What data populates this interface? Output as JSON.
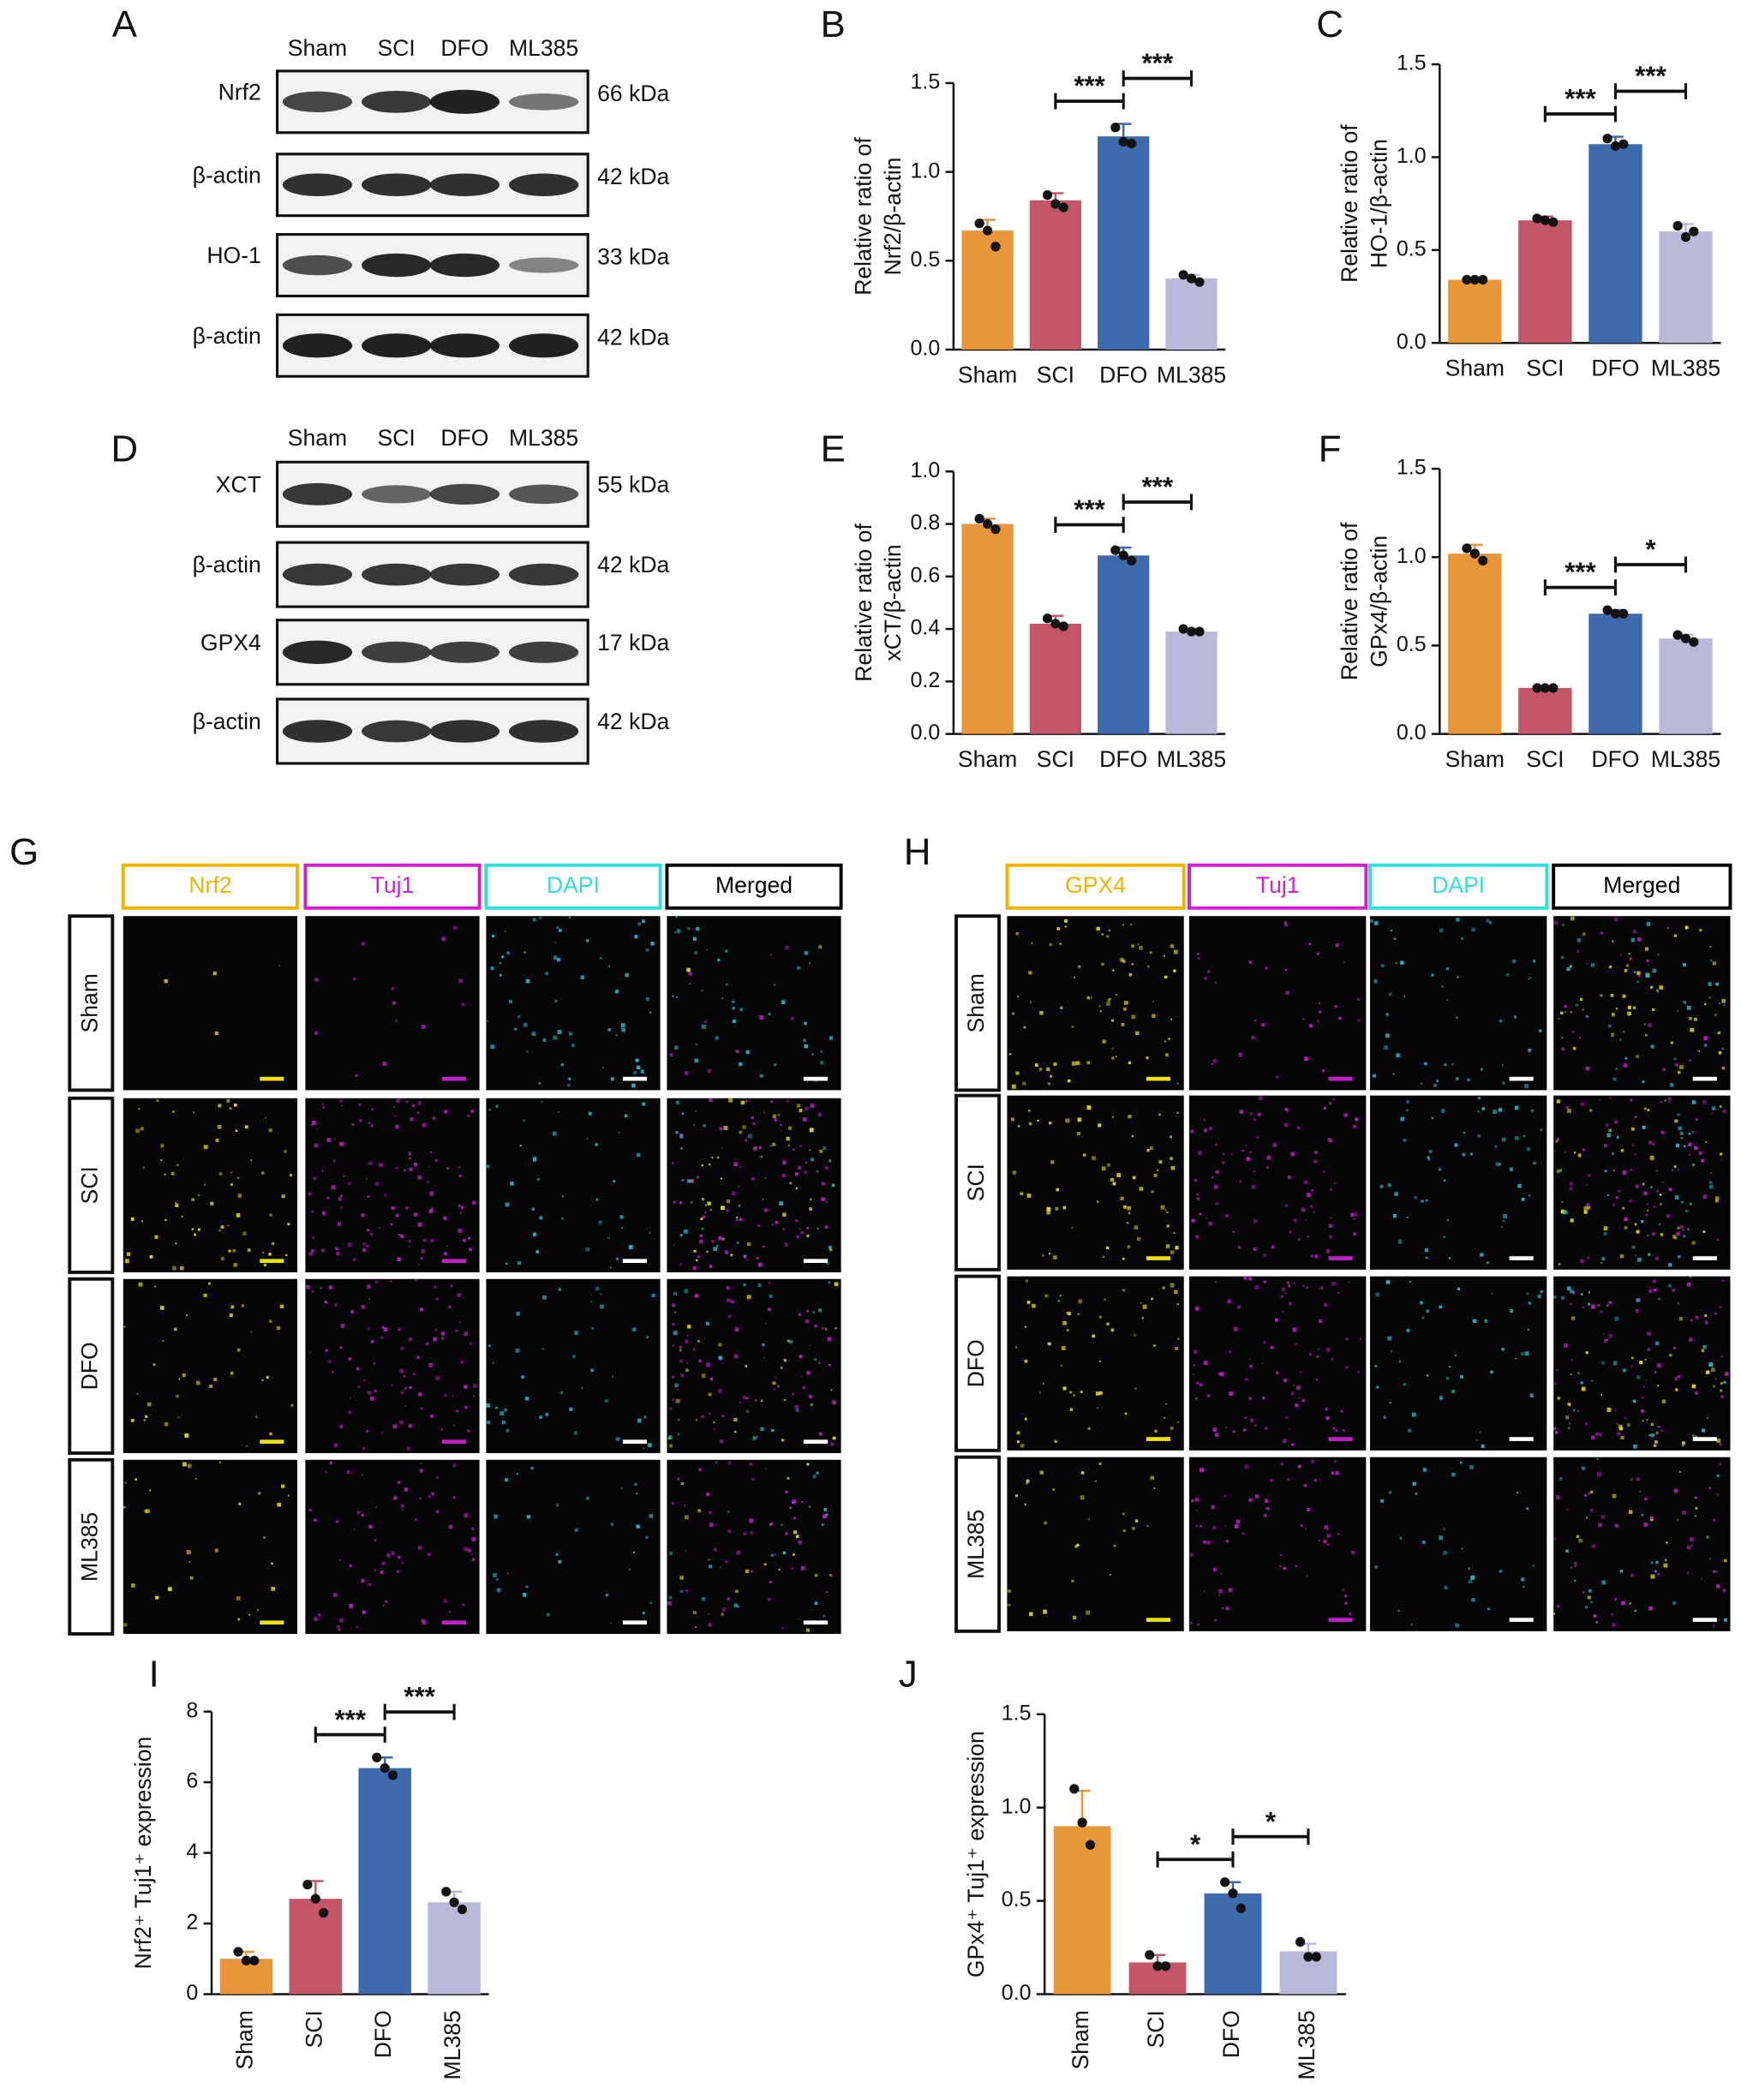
{
  "chart_data": [
    {
      "type": "bar",
      "panel": "B",
      "ylabel": [
        "Relative ratio of",
        "Nrf2/β-actin"
      ],
      "categories": [
        "Sham",
        "SCI",
        "DFO",
        "ML385"
      ],
      "colors": [
        "#e8963a",
        "#c4566a",
        "#3e6aab",
        "#b9b9da"
      ],
      "values": [
        0.67,
        0.84,
        1.2,
        0.4
      ],
      "errors": [
        0.06,
        0.04,
        0.07,
        0.02
      ],
      "points": [
        [
          0.71,
          0.67,
          0.58
        ],
        [
          0.87,
          0.82,
          0.8
        ],
        [
          1.25,
          1.17,
          1.16
        ],
        [
          0.42,
          0.4,
          0.38
        ]
      ],
      "ylim": [
        0,
        1.5
      ],
      "yticks": [
        {
          "value": 0,
          "label": "0.0"
        },
        {
          "value": 0.5,
          "label": "0.5"
        },
        {
          "value": 1,
          "label": "1.0"
        },
        {
          "value": 1.5,
          "label": "1.5"
        }
      ],
      "significance": [
        {
          "groups": [
            "SCI",
            "DFO"
          ],
          "label": "***"
        },
        {
          "groups": [
            "DFO",
            "ML385"
          ],
          "label": "***"
        }
      ],
      "x_labels_vertical": false
    },
    {
      "type": "bar",
      "panel": "C",
      "ylabel": [
        "Relative ratio of",
        "HO-1/β-actin"
      ],
      "categories": [
        "Sham",
        "SCI",
        "DFO",
        "ML385"
      ],
      "colors": [
        "#e8963a",
        "#c4566a",
        "#3e6aab",
        "#b9b9da"
      ],
      "values": [
        0.34,
        0.66,
        1.07,
        0.6
      ],
      "errors": [
        0.01,
        0.02,
        0.04,
        0.04
      ],
      "points": [
        [
          0.34,
          0.34,
          0.34
        ],
        [
          0.67,
          0.66,
          0.65
        ],
        [
          1.1,
          1.06,
          1.07
        ],
        [
          0.63,
          0.57,
          0.6
        ]
      ],
      "ylim": [
        0,
        1.5
      ],
      "yticks": [
        {
          "value": 0,
          "label": "0.0"
        },
        {
          "value": 0.5,
          "label": "0.5"
        },
        {
          "value": 1,
          "label": "1.0"
        },
        {
          "value": 1.5,
          "label": "1.5"
        }
      ],
      "significance": [
        {
          "groups": [
            "SCI",
            "DFO"
          ],
          "label": "***"
        },
        {
          "groups": [
            "DFO",
            "ML385"
          ],
          "label": "***"
        }
      ],
      "x_labels_vertical": false
    },
    {
      "type": "bar",
      "panel": "E",
      "ylabel": [
        "Relative ratio of",
        "xCT/β-actin"
      ],
      "categories": [
        "Sham",
        "SCI",
        "DFO",
        "ML385"
      ],
      "colors": [
        "#e8963a",
        "#c4566a",
        "#3e6aab",
        "#b9b9da"
      ],
      "values": [
        0.8,
        0.42,
        0.68,
        0.39
      ],
      "errors": [
        0.02,
        0.03,
        0.03,
        0.01
      ],
      "points": [
        [
          0.82,
          0.8,
          0.78
        ],
        [
          0.44,
          0.42,
          0.41
        ],
        [
          0.7,
          0.68,
          0.66
        ],
        [
          0.4,
          0.39,
          0.39
        ]
      ],
      "ylim": [
        0,
        1
      ],
      "yticks": [
        {
          "value": 0,
          "label": "0.0"
        },
        0.2,
        0.4,
        0.6,
        0.8,
        {
          "value": 1,
          "label": "1.0"
        }
      ],
      "significance": [
        {
          "groups": [
            "SCI",
            "DFO"
          ],
          "label": "***"
        },
        {
          "groups": [
            "DFO",
            "ML385"
          ],
          "label": "***"
        }
      ],
      "x_labels_vertical": false
    },
    {
      "type": "bar",
      "panel": "F",
      "ylabel": [
        "Relative ratio of",
        "GPx4/β-actin"
      ],
      "categories": [
        "Sham",
        "SCI",
        "DFO",
        "ML385"
      ],
      "colors": [
        "#e8963a",
        "#c4566a",
        "#3e6aab",
        "#b9b9da"
      ],
      "values": [
        1.02,
        0.26,
        0.68,
        0.54
      ],
      "errors": [
        0.05,
        0.01,
        0.02,
        0.02
      ],
      "points": [
        [
          1.05,
          1.02,
          0.98
        ],
        [
          0.26,
          0.26,
          0.26
        ],
        [
          0.7,
          0.68,
          0.68
        ],
        [
          0.56,
          0.54,
          0.52
        ]
      ],
      "ylim": [
        0,
        1.5
      ],
      "yticks": [
        {
          "value": 0,
          "label": "0.0"
        },
        {
          "value": 0.5,
          "label": "0.5"
        },
        {
          "value": 1,
          "label": "1.0"
        },
        {
          "value": 1.5,
          "label": "1.5"
        }
      ],
      "significance": [
        {
          "groups": [
            "SCI",
            "DFO"
          ],
          "label": "***"
        },
        {
          "groups": [
            "DFO",
            "ML385"
          ],
          "label": "*"
        }
      ],
      "x_labels_vertical": false
    },
    {
      "type": "bar",
      "panel": "I",
      "ylabel": [
        "Nrf2⁺ Tuj1⁺ expression"
      ],
      "categories": [
        "Sham",
        "SCI",
        "DFO",
        "ML385"
      ],
      "colors": [
        "#e8963a",
        "#c4566a",
        "#3e6aab",
        "#b9b9da"
      ],
      "values": [
        1,
        2.7,
        6.4,
        2.6
      ],
      "errors": [
        0.2,
        0.5,
        0.3,
        0.3
      ],
      "points": [
        [
          1.2,
          0.95,
          0.95
        ],
        [
          3.1,
          2.7,
          2.3
        ],
        [
          6.7,
          6.4,
          6.2
        ],
        [
          2.9,
          2.6,
          2.4
        ]
      ],
      "ylim": [
        0,
        8
      ],
      "yticks": [
        0,
        2,
        4,
        6,
        8
      ],
      "significance": [
        {
          "groups": [
            "SCI",
            "DFO"
          ],
          "label": "***"
        },
        {
          "groups": [
            "DFO",
            "ML385"
          ],
          "label": "***"
        }
      ],
      "x_labels_vertical": true
    },
    {
      "type": "bar",
      "panel": "J",
      "ylabel": [
        "GPx4⁺ Tuj1⁺ expression"
      ],
      "categories": [
        "Sham",
        "SCI",
        "DFO",
        "ML385"
      ],
      "colors": [
        "#e8963a",
        "#c4566a",
        "#3e6aab",
        "#b9b9da"
      ],
      "values": [
        0.9,
        0.17,
        0.54,
        0.23
      ],
      "errors": [
        0.19,
        0.04,
        0.06,
        0.04
      ],
      "points": [
        [
          1.1,
          0.92,
          0.8
        ],
        [
          0.21,
          0.15,
          0.15
        ],
        [
          0.6,
          0.54,
          0.46
        ],
        [
          0.28,
          0.2,
          0.2
        ]
      ],
      "ylim": [
        0,
        1.5
      ],
      "yticks": [
        {
          "value": 0,
          "label": "0.0"
        },
        {
          "value": 0.5,
          "label": "0.5"
        },
        {
          "value": 1,
          "label": "1.0"
        },
        {
          "value": 1.5,
          "label": "1.5"
        }
      ],
      "significance": [
        {
          "groups": [
            "SCI",
            "DFO"
          ],
          "label": "*"
        },
        {
          "groups": [
            "DFO",
            "ML385"
          ],
          "label": "*"
        }
      ],
      "x_labels_vertical": true
    }
  ],
  "blots": [
    {
      "panel": "A",
      "lanes": [
        "Sham",
        "SCI",
        "DFO",
        "ML385"
      ],
      "rows": [
        {
          "label": "Nrf2",
          "size": "66 kDa"
        },
        {
          "label": "β-actin",
          "size": "42 kDa"
        },
        {
          "label": "HO-1",
          "size": "33 kDa"
        },
        {
          "label": "β-actin",
          "size": "42 kDa"
        }
      ]
    },
    {
      "panel": "D",
      "lanes": [
        "Sham",
        "SCI",
        "DFO",
        "ML385"
      ],
      "rows": [
        {
          "label": "XCT",
          "size": "55 kDa"
        },
        {
          "label": "β-actin",
          "size": "42 kDa"
        },
        {
          "label": "GPX4",
          "size": "17 kDa"
        },
        {
          "label": "β-actin",
          "size": "42 kDa"
        }
      ]
    }
  ],
  "microscopy": [
    {
      "panel": "G",
      "channels": [
        "Nrf2",
        "Tuj1",
        "DAPI",
        "Merged"
      ],
      "rows": [
        "Sham",
        "SCI",
        "DFO",
        "ML385"
      ]
    },
    {
      "panel": "H",
      "channels": [
        "GPX4",
        "Tuj1",
        "DAPI",
        "Merged"
      ],
      "rows": [
        "Sham",
        "SCI",
        "DFO",
        "ML385"
      ]
    }
  ]
}
